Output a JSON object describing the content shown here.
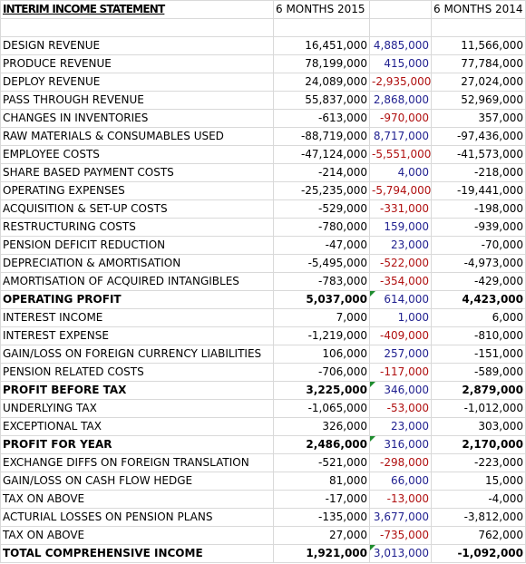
{
  "title": "INTERIM INCOME STATEMENT",
  "col_2015": "6 MONTHS 2015",
  "col_2014": "6 MONTHS 2014",
  "colors": {
    "positive_variance": "#1f1f8f",
    "negative_variance": "#b01010",
    "comment_flag": "#1e8c2e"
  },
  "rows": [
    {
      "label": "DESIGN REVENUE",
      "v2015": "16,451,000",
      "var": "4,885,000",
      "v2014": "11,566,000",
      "bold": false,
      "neg": false,
      "flag": false
    },
    {
      "label": "PRODUCE REVENUE",
      "v2015": "78,199,000",
      "var": "415,000",
      "v2014": "77,784,000",
      "bold": false,
      "neg": false,
      "flag": false
    },
    {
      "label": "DEPLOY REVENUE",
      "v2015": "24,089,000",
      "var": "-2,935,000",
      "v2014": "27,024,000",
      "bold": false,
      "neg": true,
      "flag": false
    },
    {
      "label": "PASS THROUGH REVENUE",
      "v2015": "55,837,000",
      "var": "2,868,000",
      "v2014": "52,969,000",
      "bold": false,
      "neg": false,
      "flag": false
    },
    {
      "label": "CHANGES IN INVENTORIES",
      "v2015": "-613,000",
      "var": "-970,000",
      "v2014": "357,000",
      "bold": false,
      "neg": true,
      "flag": false
    },
    {
      "label": "RAW MATERIALS & CONSUMABLES USED",
      "v2015": "-88,719,000",
      "var": "8,717,000",
      "v2014": "-97,436,000",
      "bold": false,
      "neg": false,
      "flag": false
    },
    {
      "label": "EMPLOYEE COSTS",
      "v2015": "-47,124,000",
      "var": "-5,551,000",
      "v2014": "-41,573,000",
      "bold": false,
      "neg": true,
      "flag": false
    },
    {
      "label": "SHARE BASED PAYMENT COSTS",
      "v2015": "-214,000",
      "var": "4,000",
      "v2014": "-218,000",
      "bold": false,
      "neg": false,
      "flag": false
    },
    {
      "label": "OPERATING EXPENSES",
      "v2015": "-25,235,000",
      "var": "-5,794,000",
      "v2014": "-19,441,000",
      "bold": false,
      "neg": true,
      "flag": false
    },
    {
      "label": "ACQUISITION & SET-UP COSTS",
      "v2015": "-529,000",
      "var": "-331,000",
      "v2014": "-198,000",
      "bold": false,
      "neg": true,
      "flag": false
    },
    {
      "label": "RESTRUCTURING COSTS",
      "v2015": "-780,000",
      "var": "159,000",
      "v2014": "-939,000",
      "bold": false,
      "neg": false,
      "flag": false
    },
    {
      "label": "PENSION DEFICIT REDUCTION",
      "v2015": "-47,000",
      "var": "23,000",
      "v2014": "-70,000",
      "bold": false,
      "neg": false,
      "flag": false
    },
    {
      "label": "DEPRECIATION & AMORTISATION",
      "v2015": "-5,495,000",
      "var": "-522,000",
      "v2014": "-4,973,000",
      "bold": false,
      "neg": true,
      "flag": false
    },
    {
      "label": "AMORTISATION OF ACQUIRED INTANGIBLES",
      "v2015": "-783,000",
      "var": "-354,000",
      "v2014": "-429,000",
      "bold": false,
      "neg": true,
      "flag": false
    },
    {
      "label": "OPERATING PROFIT",
      "v2015": "5,037,000",
      "var": "614,000",
      "v2014": "4,423,000",
      "bold": true,
      "neg": false,
      "flag": true
    },
    {
      "label": "INTEREST INCOME",
      "v2015": "7,000",
      "var": "1,000",
      "v2014": "6,000",
      "bold": false,
      "neg": false,
      "flag": false
    },
    {
      "label": "INTEREST EXPENSE",
      "v2015": "-1,219,000",
      "var": "-409,000",
      "v2014": "-810,000",
      "bold": false,
      "neg": true,
      "flag": false
    },
    {
      "label": "GAIN/LOSS ON FOREIGN CURRENCY LIABILITIES",
      "v2015": "106,000",
      "var": "257,000",
      "v2014": "-151,000",
      "bold": false,
      "neg": false,
      "flag": false
    },
    {
      "label": "PENSION RELATED COSTS",
      "v2015": "-706,000",
      "var": "-117,000",
      "v2014": "-589,000",
      "bold": false,
      "neg": true,
      "flag": false
    },
    {
      "label": "PROFIT BEFORE TAX",
      "v2015": "3,225,000",
      "var": "346,000",
      "v2014": "2,879,000",
      "bold": true,
      "neg": false,
      "flag": true
    },
    {
      "label": "UNDERLYING TAX",
      "v2015": "-1,065,000",
      "var": "-53,000",
      "v2014": "-1,012,000",
      "bold": false,
      "neg": true,
      "flag": false
    },
    {
      "label": "EXCEPTIONAL TAX",
      "v2015": "326,000",
      "var": "23,000",
      "v2014": "303,000",
      "bold": false,
      "neg": false,
      "flag": false
    },
    {
      "label": "PROFIT FOR YEAR",
      "v2015": "2,486,000",
      "var": "316,000",
      "v2014": "2,170,000",
      "bold": true,
      "neg": false,
      "flag": true
    },
    {
      "label": "EXCHANGE DIFFS ON FOREIGN TRANSLATION",
      "v2015": "-521,000",
      "var": "-298,000",
      "v2014": "-223,000",
      "bold": false,
      "neg": true,
      "flag": false
    },
    {
      "label": "GAIN/LOSS ON CASH FLOW HEDGE",
      "v2015": "81,000",
      "var": "66,000",
      "v2014": "15,000",
      "bold": false,
      "neg": false,
      "flag": false
    },
    {
      "label": "TAX ON ABOVE",
      "v2015": "-17,000",
      "var": "-13,000",
      "v2014": "-4,000",
      "bold": false,
      "neg": true,
      "flag": false
    },
    {
      "label": "ACTURIAL LOSSES ON PENSION PLANS",
      "v2015": "-135,000",
      "var": "3,677,000",
      "v2014": "-3,812,000",
      "bold": false,
      "neg": false,
      "flag": false
    },
    {
      "label": "TAX ON ABOVE",
      "v2015": "27,000",
      "var": "-735,000",
      "v2014": "762,000",
      "bold": false,
      "neg": true,
      "flag": false
    },
    {
      "label": "TOTAL COMPREHENSIVE INCOME",
      "v2015": "1,921,000",
      "var": "3,013,000",
      "v2014": "-1,092,000",
      "bold": true,
      "neg": false,
      "flag": true
    }
  ]
}
